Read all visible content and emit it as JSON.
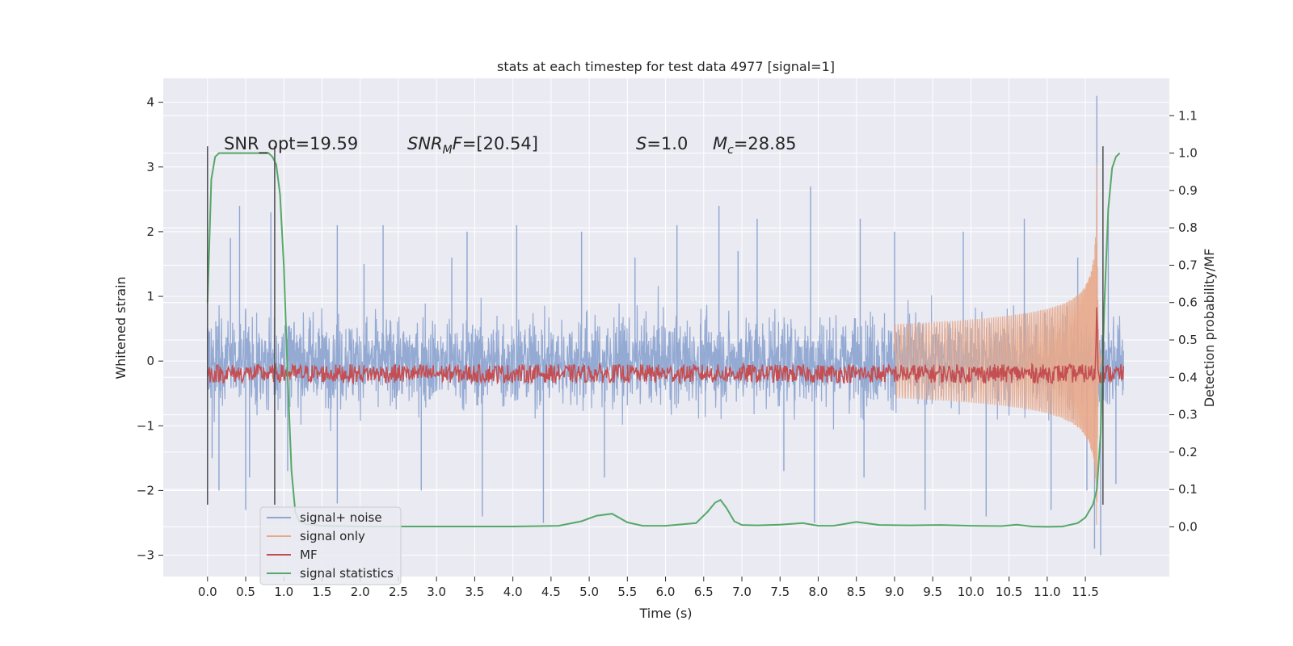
{
  "chart_data": {
    "type": "line",
    "title": "stats at each timestep for test data 4977 [signal=1]",
    "xlabel": "Time (s)",
    "ylabel_left": "Whitened strain",
    "ylabel_right": "Detection probability/MF",
    "xlim": [
      -0.58,
      12.6
    ],
    "ylim_left": [
      -3.33,
      4.37
    ],
    "ylim_right": [
      -0.133,
      1.2
    ],
    "x_ticks": [
      0.0,
      0.5,
      1.0,
      1.5,
      2.0,
      2.5,
      3.0,
      3.5,
      4.0,
      4.5,
      5.0,
      5.5,
      6.0,
      6.5,
      7.0,
      7.5,
      8.0,
      8.5,
      9.0,
      9.5,
      10.0,
      10.5,
      11.0,
      11.5
    ],
    "x_tick_labels": [
      "0.0",
      "0.5",
      "1.0",
      "1.5",
      "2.0",
      "2.5",
      "3.0",
      "3.5",
      "4.0",
      "4.5",
      "5.0",
      "5.5",
      "6.0",
      "6.5",
      "7.0",
      "7.5",
      "8.0",
      "8.5",
      "9.0",
      "9.5",
      "10.0",
      "10.5",
      "11.0",
      "11.5"
    ],
    "y_left_ticks": [
      -3,
      -2,
      -1,
      0,
      1,
      2,
      3,
      4
    ],
    "y_left_tick_labels": [
      "−3",
      "−2",
      "−1",
      "0",
      "1",
      "2",
      "3",
      "4"
    ],
    "y_right_ticks": [
      0.0,
      0.1,
      0.2,
      0.3,
      0.4,
      0.5,
      0.6,
      0.7,
      0.8,
      0.9,
      1.0,
      1.1
    ],
    "y_right_tick_labels": [
      "0.0",
      "0.1",
      "0.2",
      "0.3",
      "0.4",
      "0.5",
      "0.6",
      "0.7",
      "0.8",
      "0.9",
      "1.0",
      "1.1"
    ],
    "grid": true,
    "legend_position": "lower-left",
    "annotations": {
      "snr_opt": "SNR_opt=19.59",
      "snr_mf_name": "SNR",
      "snr_mf_sub": "M",
      "snr_mf_tail": "F",
      "snr_mf_value": "=[20.54]",
      "s_name": "S",
      "s_value": "=1.0",
      "mc_name": "M",
      "mc_sub": "c",
      "mc_value": "=28.85"
    },
    "vertical_markers": [
      {
        "x": 0.0,
        "y_range": [
          -2.22,
          3.32
        ]
      },
      {
        "x": 0.88,
        "y_range": [
          -2.22,
          3.32
        ]
      },
      {
        "x": 11.73,
        "y_range": [
          -2.22,
          3.32
        ]
      }
    ],
    "series": [
      {
        "name": "signal+ noise",
        "axis": "left",
        "color": "#8fa6d1",
        "description_range": [
          -3.0,
          4.1
        ],
        "x_range": [
          0.0,
          12.0
        ],
        "band_typical": [
          -1.15,
          1.15
        ],
        "spikes": [
          {
            "x": 0.06,
            "y": -1.5
          },
          {
            "x": 0.15,
            "y": -2.0
          },
          {
            "x": 0.3,
            "y": 1.9
          },
          {
            "x": 0.42,
            "y": 2.4
          },
          {
            "x": 0.5,
            "y": -2.3
          },
          {
            "x": 0.55,
            "y": -1.8
          },
          {
            "x": 0.83,
            "y": 2.3
          },
          {
            "x": 1.05,
            "y": -1.7
          },
          {
            "x": 1.7,
            "y": -2.2
          },
          {
            "x": 1.7,
            "y": 2.1
          },
          {
            "x": 2.05,
            "y": 1.5
          },
          {
            "x": 2.3,
            "y": 2.1
          },
          {
            "x": 2.8,
            "y": -2.0
          },
          {
            "x": 3.2,
            "y": 1.6
          },
          {
            "x": 3.4,
            "y": 2.0
          },
          {
            "x": 3.6,
            "y": -2.4
          },
          {
            "x": 4.05,
            "y": 2.1
          },
          {
            "x": 4.4,
            "y": -2.5
          },
          {
            "x": 4.9,
            "y": 2.0
          },
          {
            "x": 5.2,
            "y": -1.8
          },
          {
            "x": 5.6,
            "y": 1.6
          },
          {
            "x": 6.15,
            "y": 2.1
          },
          {
            "x": 6.7,
            "y": 2.4
          },
          {
            "x": 6.95,
            "y": 1.7
          },
          {
            "x": 7.2,
            "y": 2.2
          },
          {
            "x": 7.55,
            "y": -1.7
          },
          {
            "x": 7.9,
            "y": 2.7
          },
          {
            "x": 7.95,
            "y": -2.5
          },
          {
            "x": 8.55,
            "y": 2.2
          },
          {
            "x": 8.6,
            "y": -1.8
          },
          {
            "x": 9.0,
            "y": 2.0
          },
          {
            "x": 9.4,
            "y": -2.3
          },
          {
            "x": 9.9,
            "y": 2.0
          },
          {
            "x": 10.2,
            "y": -2.4
          },
          {
            "x": 10.7,
            "y": 2.2
          },
          {
            "x": 11.05,
            "y": -2.3
          },
          {
            "x": 11.4,
            "y": 1.6
          },
          {
            "x": 11.52,
            "y": -2.0
          },
          {
            "x": 11.62,
            "y": -2.9
          },
          {
            "x": 11.65,
            "y": 4.1
          },
          {
            "x": 11.7,
            "y": -3.0
          },
          {
            "x": 11.8,
            "y": 2.2
          },
          {
            "x": 11.9,
            "y": -1.9
          }
        ]
      },
      {
        "name": "signal only",
        "axis": "left",
        "color": "#e8a88a",
        "chirp_start": 9.0,
        "merger_time": 11.65,
        "peak_amplitude": 3.05,
        "ringdown_end": 11.75
      },
      {
        "name": "MF",
        "axis": "right",
        "color": "#c44e52",
        "baseline": 0.41,
        "noise_band": [
          0.39,
          0.44
        ],
        "peak": {
          "x": 11.65,
          "y": 0.6
        }
      },
      {
        "name": "signal statistics",
        "axis": "right",
        "color": "#55a868",
        "x": [
          0.0,
          0.05,
          0.1,
          0.15,
          0.2,
          0.3,
          0.4,
          0.5,
          0.6,
          0.7,
          0.8,
          0.85,
          0.9,
          0.95,
          1.0,
          1.05,
          1.1,
          1.15,
          1.2,
          1.3,
          1.5,
          2.0,
          3.0,
          4.0,
          4.6,
          4.9,
          5.1,
          5.3,
          5.5,
          5.7,
          6.0,
          6.4,
          6.55,
          6.65,
          6.72,
          6.8,
          6.9,
          7.0,
          7.2,
          7.5,
          7.8,
          8.0,
          8.2,
          8.5,
          8.8,
          9.2,
          9.6,
          10.0,
          10.4,
          10.6,
          10.8,
          11.0,
          11.2,
          11.4,
          11.5,
          11.6,
          11.65,
          11.7,
          11.75,
          11.8,
          11.85,
          11.9,
          11.95
        ],
        "y": [
          0.6,
          0.93,
          0.99,
          1.0,
          1.0,
          1.0,
          1.0,
          1.0,
          1.0,
          1.0,
          1.0,
          0.99,
          0.97,
          0.89,
          0.7,
          0.4,
          0.15,
          0.04,
          0.015,
          0.007,
          0.003,
          0.001,
          0.001,
          0.001,
          0.003,
          0.015,
          0.03,
          0.035,
          0.012,
          0.003,
          0.003,
          0.01,
          0.04,
          0.065,
          0.072,
          0.05,
          0.015,
          0.005,
          0.004,
          0.006,
          0.01,
          0.003,
          0.003,
          0.013,
          0.005,
          0.004,
          0.005,
          0.003,
          0.002,
          0.006,
          0.001,
          0.0,
          0.001,
          0.01,
          0.025,
          0.06,
          0.1,
          0.25,
          0.6,
          0.85,
          0.96,
          0.99,
          1.0
        ]
      }
    ]
  },
  "legend": [
    {
      "label": "signal+ noise",
      "color": "#8fa6d1"
    },
    {
      "label": "signal only",
      "color": "#e8a88a"
    },
    {
      "label": "MF",
      "color": "#c44e52"
    },
    {
      "label": "signal statistics",
      "color": "#55a868"
    }
  ],
  "colors": {
    "plot_background": "#eaeaf2",
    "grid": "#ffffff",
    "marker": "#4d4d4d"
  }
}
